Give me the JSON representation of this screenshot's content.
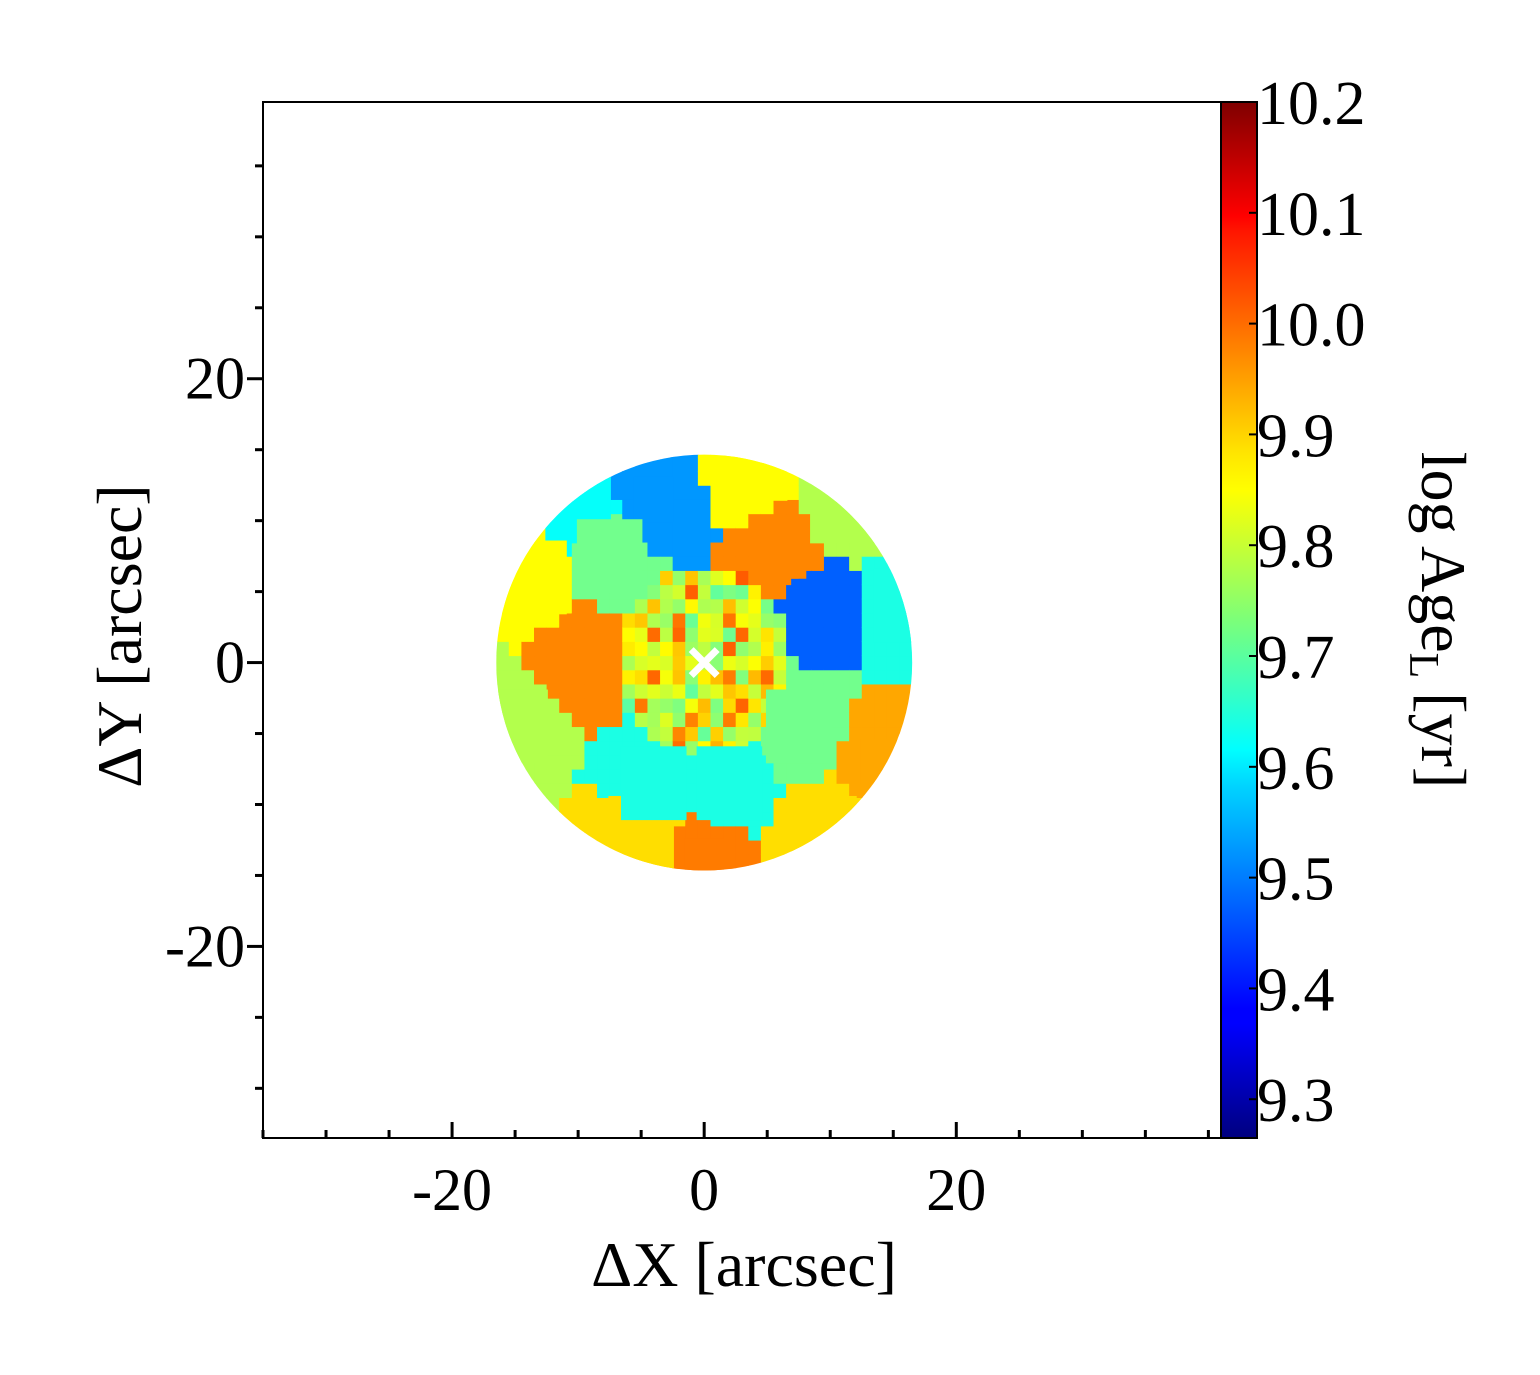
{
  "chart_data": {
    "type": "heatmap",
    "title": "",
    "xlabel": "ΔX [arcsec]",
    "ylabel": "ΔY [arcsec]",
    "xlim": [
      -35,
      41
    ],
    "ylim": [
      -33.5,
      39.5
    ],
    "x_ticks": [
      -20,
      0,
      20
    ],
    "x_tick_labels": [
      "-20",
      "0",
      "20"
    ],
    "y_ticks": [
      20,
      0,
      -20
    ],
    "y_tick_labels": [
      "20",
      "0",
      "-20"
    ],
    "minor_tick_step": 5,
    "colorbar": {
      "label": "log Age",
      "label_subscript": "L",
      "label_unit": "[yr]",
      "range": [
        9.265,
        10.2
      ],
      "ticks": [
        10.2,
        10.1,
        10.0,
        9.9,
        9.8,
        9.7,
        9.6,
        9.5,
        9.4,
        9.3
      ],
      "tick_labels": [
        "10.2",
        "10.1",
        "10.0",
        "9.9",
        "9.8",
        "9.7",
        "9.6",
        "9.5",
        "9.4",
        "9.3"
      ],
      "colormap": "jet"
    },
    "field": {
      "shape": "disk",
      "center": [
        0,
        0
      ],
      "radius": 16.5,
      "min_value": 9.55,
      "max_value": 10.0,
      "typical_value": 9.8
    },
    "regions": [
      {
        "x": -9.5,
        "y": 0.5,
        "value": 9.96
      },
      {
        "x": 14.0,
        "y": -7.0,
        "value": 9.93
      },
      {
        "x": 0.0,
        "y": -14.0,
        "value": 9.97
      },
      {
        "x": 6.5,
        "y": 7.5,
        "value": 9.96
      },
      {
        "x": 8.5,
        "y": 4.3,
        "value": 9.47
      },
      {
        "x": -4.0,
        "y": 11.5,
        "value": 9.52
      },
      {
        "x": -10.0,
        "y": 11.0,
        "value": 9.62
      },
      {
        "x": 16.0,
        "y": 4.0,
        "value": 9.64
      },
      {
        "x": 11.0,
        "y": 11.0,
        "value": 9.78
      },
      {
        "x": 4.0,
        "y": 14.0,
        "value": 9.85
      },
      {
        "x": -13.5,
        "y": 6.0,
        "value": 9.85
      },
      {
        "x": -15.0,
        "y": -4.5,
        "value": 9.78
      },
      {
        "x": -5.0,
        "y": -12.0,
        "value": 9.88
      },
      {
        "x": 9.5,
        "y": -12.0,
        "value": 9.88
      },
      {
        "x": 2.0,
        "y": -8.5,
        "value": 9.64
      },
      {
        "x": -4.0,
        "y": -8.5,
        "value": 9.64
      },
      {
        "x": 7.5,
        "y": -4.5,
        "value": 9.72
      },
      {
        "x": -7.5,
        "y": 7.5,
        "value": 9.72
      }
    ],
    "marker": {
      "symbol": "x",
      "x": 0,
      "y": 0,
      "color": "#ffffff"
    }
  }
}
